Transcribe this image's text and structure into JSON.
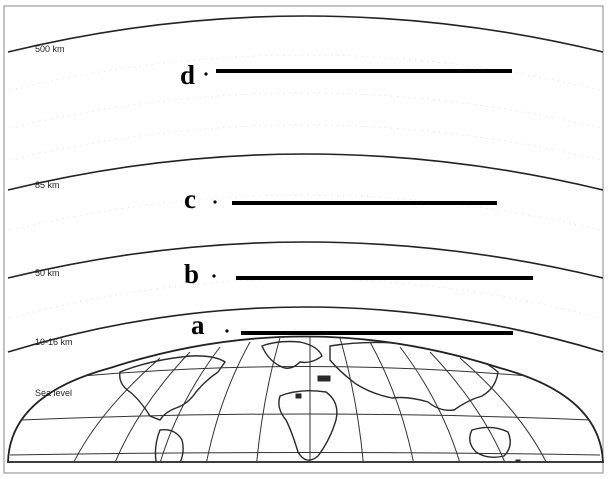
{
  "altitude_labels": [
    "500 km",
    "85 km",
    "50 km",
    "10-16 km",
    "Sea level"
  ],
  "layer_letters": [
    "d",
    "c",
    "b",
    "a"
  ],
  "colors": {
    "line": "#222222",
    "answer_line": "#000000",
    "land": "#2a2a2a",
    "background": "#ffffff"
  }
}
